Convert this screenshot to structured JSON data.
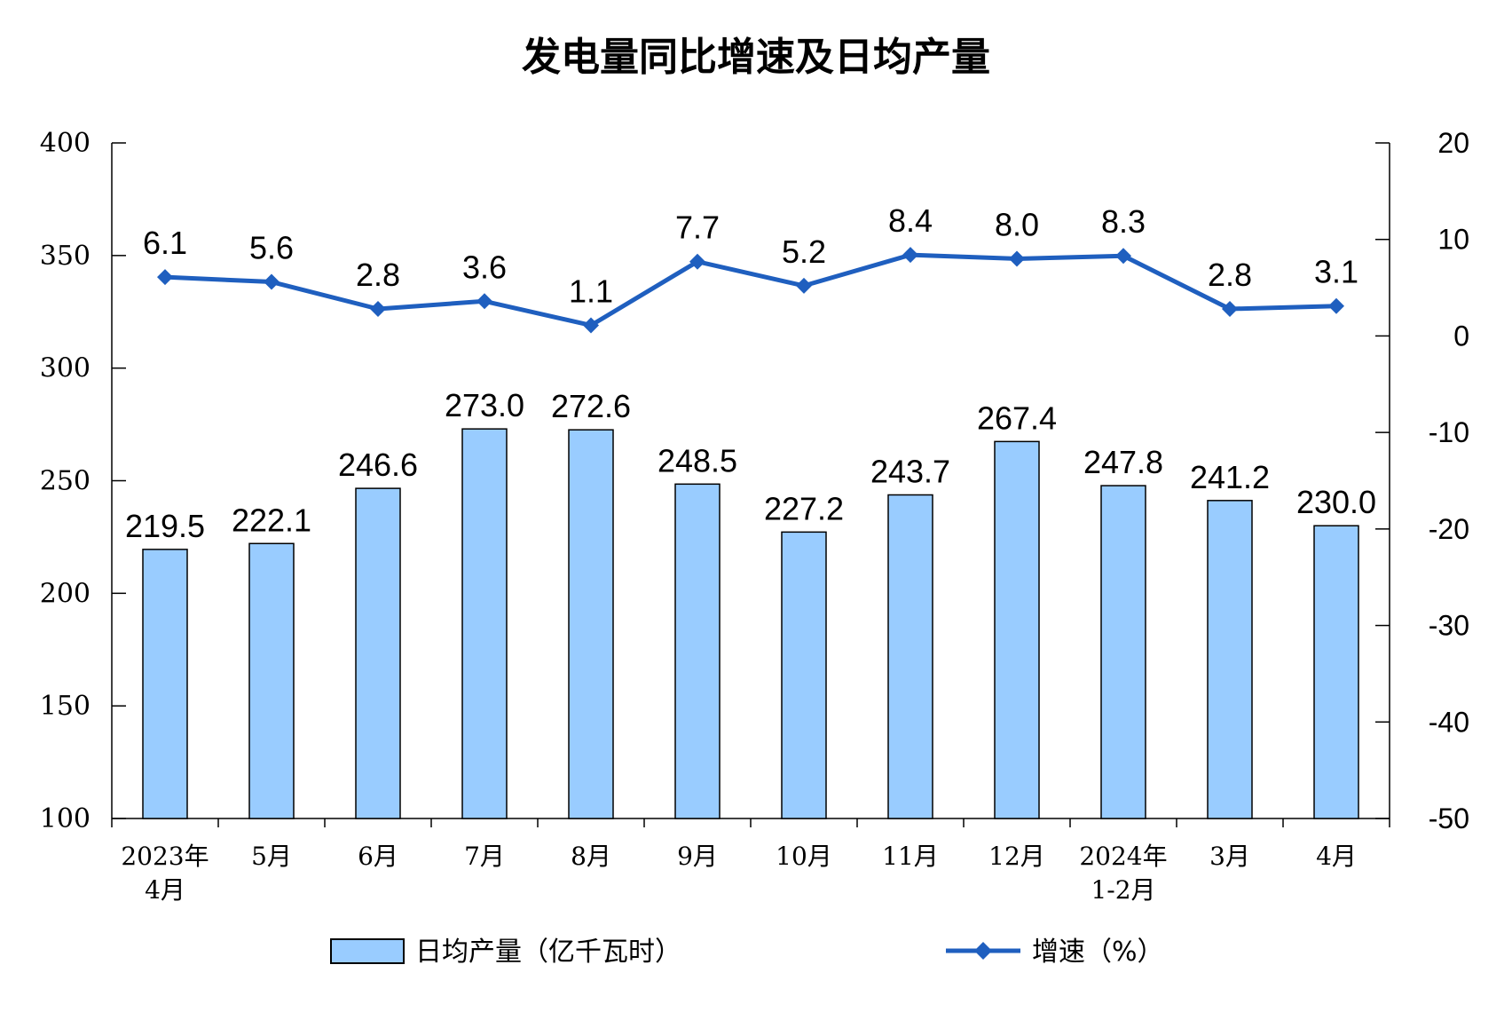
{
  "chart_data": {
    "type": "bar",
    "title": "发电量同比增速及日均产量",
    "categories": [
      [
        "2023年",
        "4月"
      ],
      [
        "5月"
      ],
      [
        "6月"
      ],
      [
        "7月"
      ],
      [
        "8月"
      ],
      [
        "9月"
      ],
      [
        "10月"
      ],
      [
        "11月"
      ],
      [
        "12月"
      ],
      [
        "2024年",
        "1-2月"
      ],
      [
        "3月"
      ],
      [
        "4月"
      ]
    ],
    "series": [
      {
        "name": "日均产量（亿千瓦时）",
        "type": "bar",
        "axis": "left",
        "color": "#99ccff",
        "values": [
          219.5,
          222.1,
          246.6,
          273.0,
          272.6,
          248.5,
          227.2,
          243.7,
          267.4,
          247.8,
          241.2,
          230.0
        ],
        "labels": [
          "219.5",
          "222.1",
          "246.6",
          "273.0",
          "272.6",
          "248.5",
          "227.2",
          "243.7",
          "267.4",
          "247.8",
          "241.2",
          "230.0"
        ]
      },
      {
        "name": "增速（%）",
        "type": "line",
        "axis": "right",
        "color": "#1f5fbf",
        "marker": "diamond",
        "values": [
          6.1,
          5.6,
          2.8,
          3.6,
          1.1,
          7.7,
          5.2,
          8.4,
          8.0,
          8.3,
          2.8,
          3.1
        ],
        "labels": [
          "6.1",
          "5.6",
          "2.8",
          "3.6",
          "1.1",
          "7.7",
          "5.2",
          "8.4",
          "8.0",
          "8.3",
          "2.8",
          "3.1"
        ]
      }
    ],
    "y_left": {
      "min": 100,
      "max": 400,
      "ticks": [
        100,
        150,
        200,
        250,
        300,
        350,
        400
      ],
      "tick_labels": [
        "100",
        "150",
        "200",
        "250",
        "300",
        "350",
        "400"
      ]
    },
    "y_right": {
      "min": -50,
      "max": 20,
      "ticks": [
        -50,
        -40,
        -30,
        -20,
        -10,
        0,
        10,
        20
      ],
      "tick_labels": [
        "-50",
        "-40",
        "-30",
        "-20",
        "-10",
        "0",
        "10",
        "20"
      ]
    },
    "grid": false,
    "legend_position": "bottom"
  }
}
